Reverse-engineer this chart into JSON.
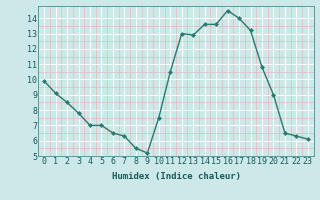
{
  "x": [
    0,
    1,
    2,
    3,
    4,
    5,
    6,
    7,
    8,
    9,
    10,
    11,
    12,
    13,
    14,
    15,
    16,
    17,
    18,
    19,
    20,
    21,
    22,
    23
  ],
  "y": [
    9.9,
    9.1,
    8.5,
    7.8,
    7.0,
    7.0,
    6.5,
    6.3,
    5.5,
    5.2,
    7.5,
    10.5,
    13.0,
    12.9,
    13.6,
    13.6,
    14.5,
    14.0,
    13.2,
    10.8,
    9.0,
    6.5,
    6.3,
    6.1
  ],
  "line_color": "#2a7a6f",
  "marker": "D",
  "marker_size": 2.0,
  "bg_color": "#cce8e8",
  "grid_major_color": "#ffffff",
  "grid_minor_color": "#ddf0f0",
  "xlabel": "Humidex (Indice chaleur)",
  "xlim": [
    -0.5,
    23.5
  ],
  "ylim": [
    5,
    14.8
  ],
  "yticks": [
    5,
    6,
    7,
    8,
    9,
    10,
    11,
    12,
    13,
    14
  ],
  "xticks": [
    0,
    1,
    2,
    3,
    4,
    5,
    6,
    7,
    8,
    9,
    10,
    11,
    12,
    13,
    14,
    15,
    16,
    17,
    18,
    19,
    20,
    21,
    22,
    23
  ],
  "label_fontsize": 6.5,
  "tick_fontsize": 6.0
}
